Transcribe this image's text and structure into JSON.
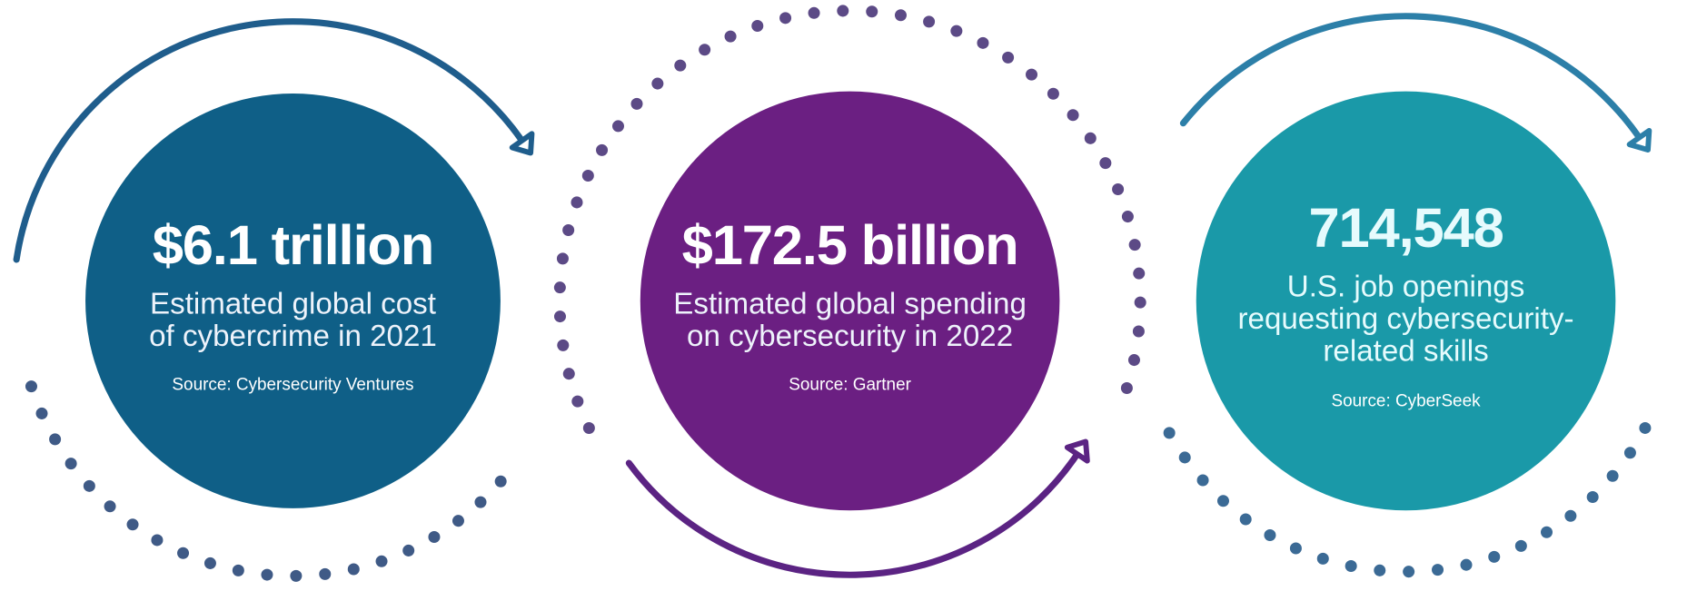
{
  "stats": [
    {
      "value": "$6.1 trillion",
      "description": [
        "Estimated global cost",
        "of cybercrime in 2021"
      ],
      "source": "Source: Cybersecurity Ventures"
    },
    {
      "value": "$172.5 billion",
      "description": [
        "Estimated global spending",
        "on cybersecurity in 2022"
      ],
      "source": "Source: Gartner"
    },
    {
      "value": "714,548",
      "description": [
        "U.S. job openings",
        "requesting cybersecurity-",
        "related skills"
      ],
      "source": "Source: CyberSeek"
    }
  ]
}
